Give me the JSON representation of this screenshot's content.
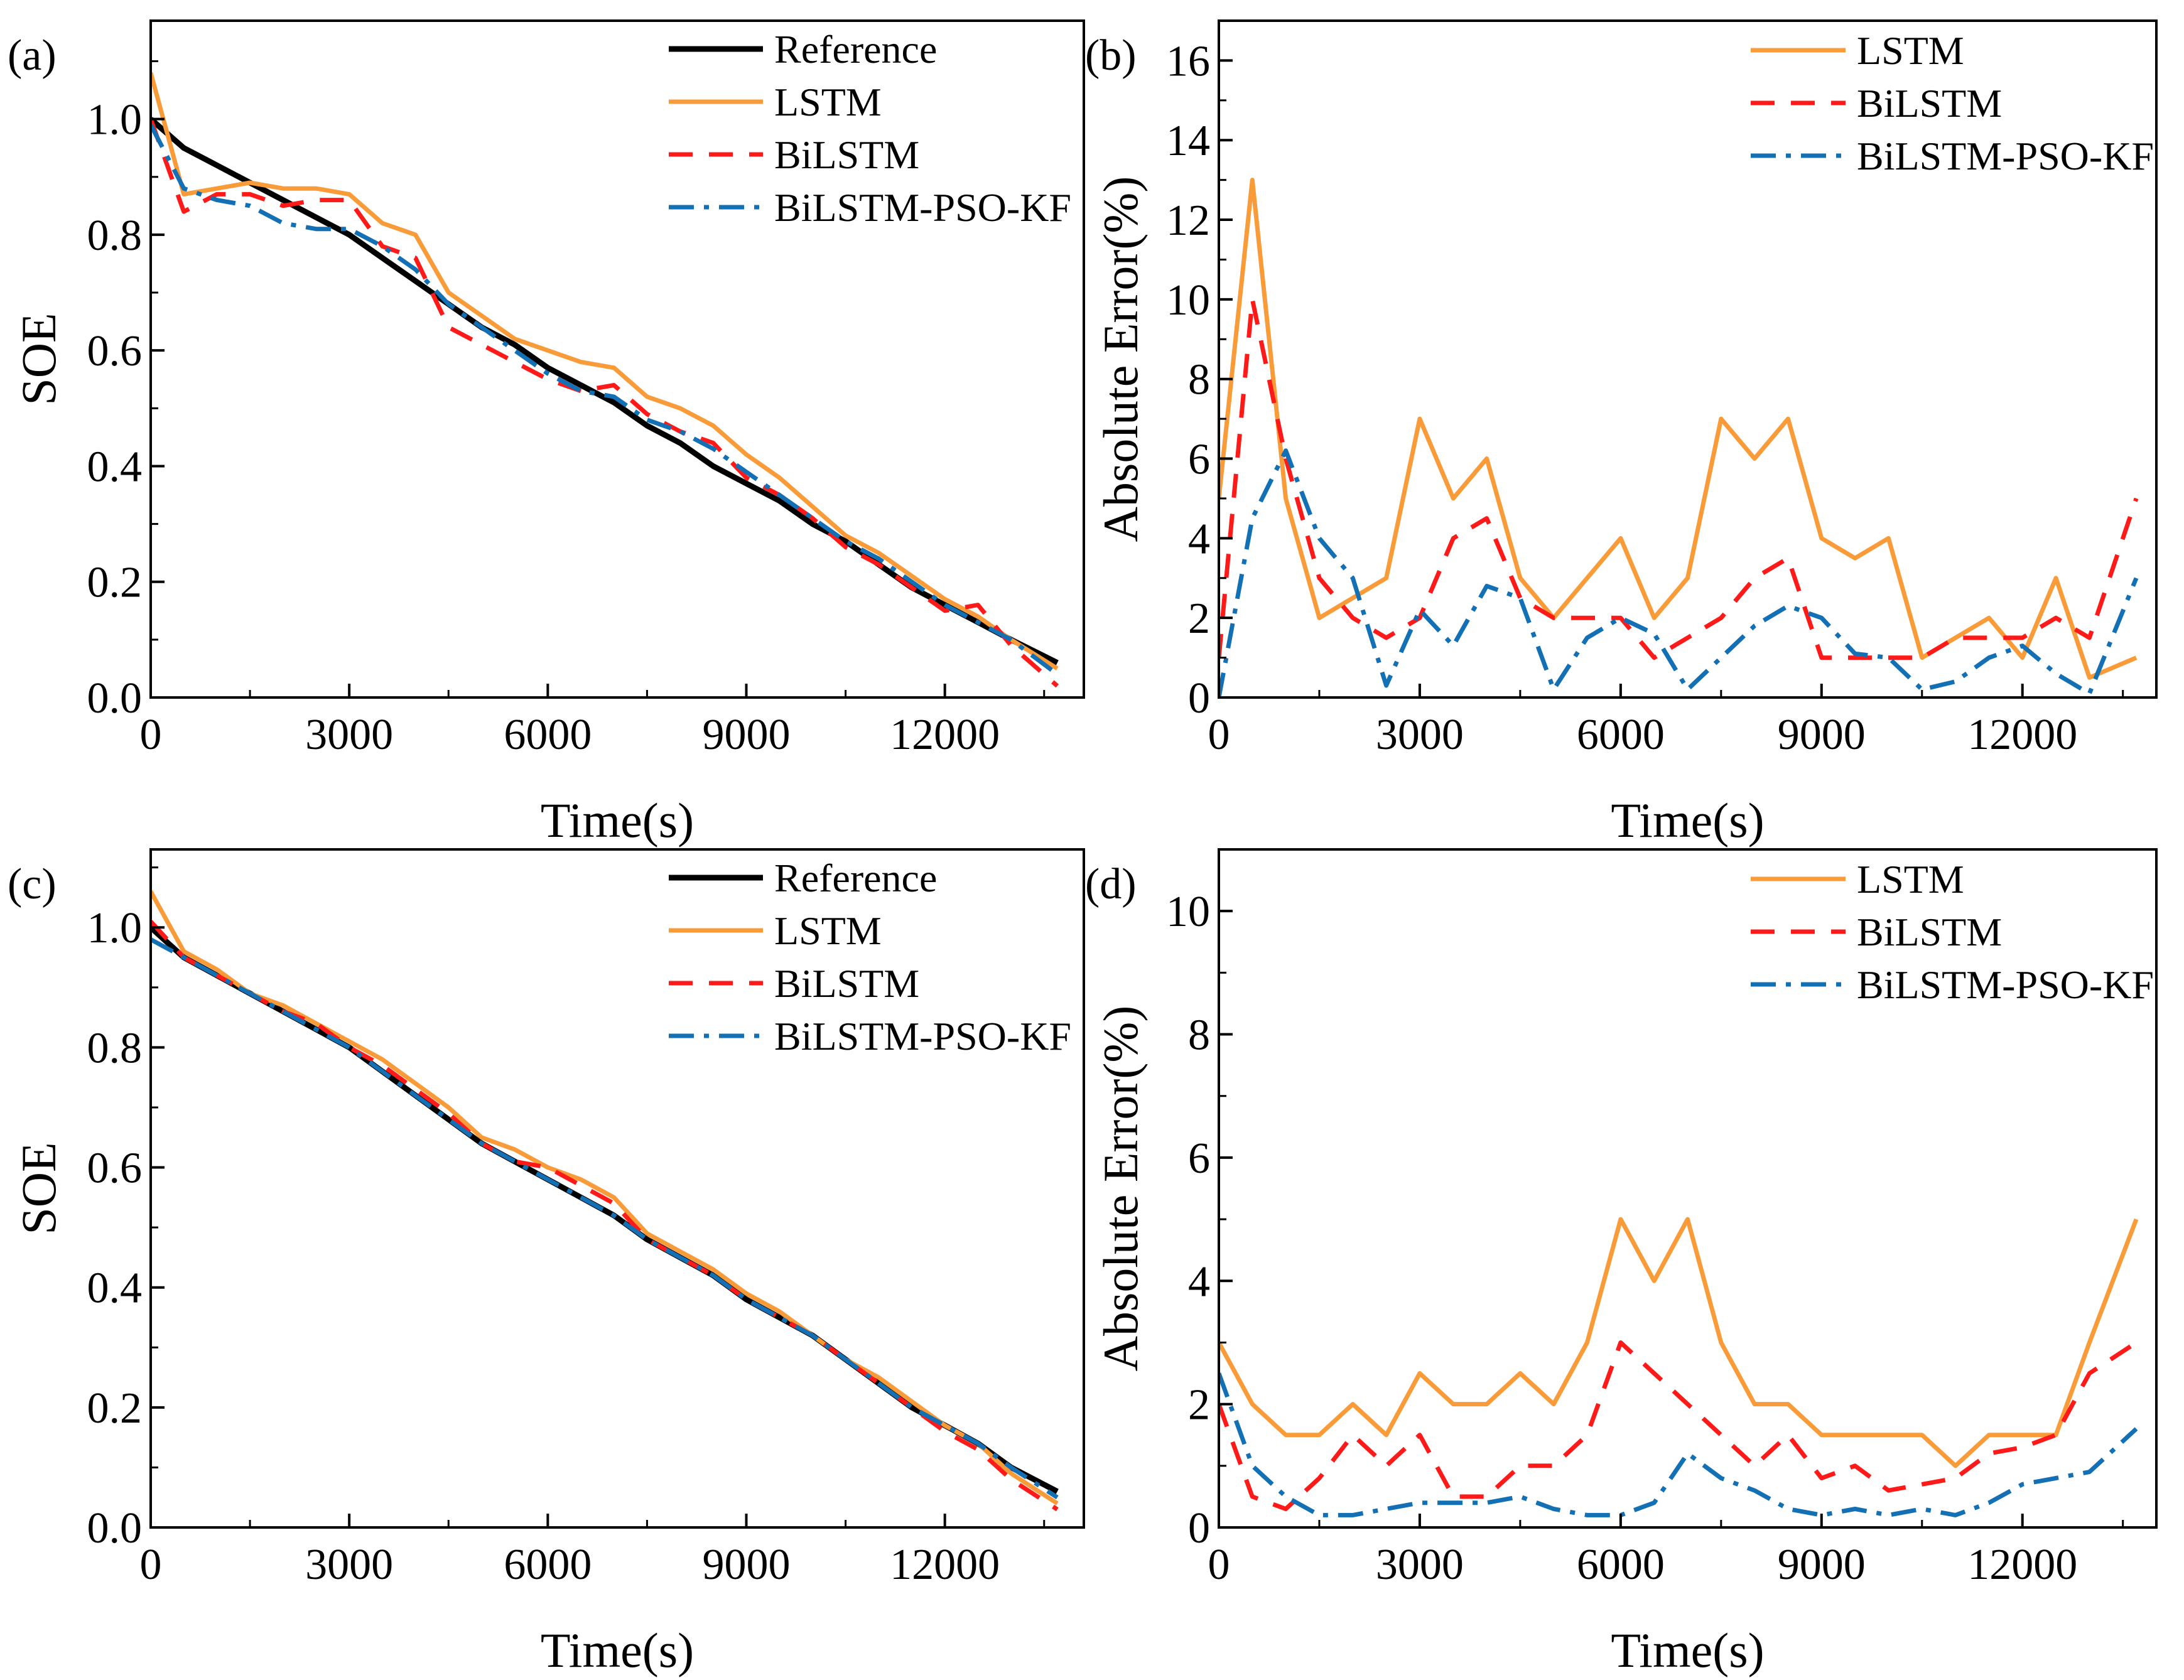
{
  "colors": {
    "Reference": "#000000",
    "LSTM": "#F99B38",
    "BiLSTM": "#FF1A1A",
    "BiLSTM-PSO-KF": "#1470B4"
  },
  "chart_data": [
    {
      "panel": "(a)",
      "type": "line",
      "xlabel": "Time(s)",
      "ylabel": "SOE",
      "xlim": [
        0,
        14100
      ],
      "ylim": [
        0,
        1.17
      ],
      "xticks": [
        0,
        3000,
        6000,
        9000,
        12000
      ],
      "xtick_labels": [
        "0",
        "3000",
        "6000",
        "9000",
        "12000"
      ],
      "yticks": [
        0,
        0.2,
        0.4,
        0.6,
        0.8,
        1.0
      ],
      "ytick_labels": [
        "0.0",
        "0.2",
        "0.4",
        "0.6",
        "0.8",
        "1.0"
      ],
      "legend": "top-right",
      "x": [
        0,
        500,
        1000,
        1500,
        2000,
        2500,
        3000,
        3500,
        4000,
        4500,
        5000,
        5500,
        6000,
        6500,
        7000,
        7500,
        8000,
        8500,
        9000,
        9500,
        10000,
        10500,
        11000,
        11500,
        12000,
        12500,
        13000,
        13700
      ],
      "series": [
        {
          "name": "Reference",
          "style": "solid",
          "values": [
            1.0,
            0.95,
            0.92,
            0.89,
            0.86,
            0.83,
            0.8,
            0.76,
            0.72,
            0.68,
            0.64,
            0.61,
            0.57,
            0.54,
            0.51,
            0.47,
            0.44,
            0.4,
            0.37,
            0.34,
            0.3,
            0.27,
            0.23,
            0.19,
            0.16,
            0.13,
            0.1,
            0.06
          ]
        },
        {
          "name": "LSTM",
          "style": "solid",
          "values": [
            1.08,
            0.87,
            0.88,
            0.89,
            0.88,
            0.88,
            0.87,
            0.82,
            0.8,
            0.7,
            0.66,
            0.62,
            0.6,
            0.58,
            0.57,
            0.52,
            0.5,
            0.47,
            0.42,
            0.38,
            0.33,
            0.28,
            0.25,
            0.21,
            0.17,
            0.14,
            0.1,
            0.05
          ]
        },
        {
          "name": "BiLSTM",
          "style": "dash",
          "values": [
            1.0,
            0.84,
            0.87,
            0.87,
            0.85,
            0.86,
            0.86,
            0.78,
            0.76,
            0.64,
            0.61,
            0.58,
            0.55,
            0.53,
            0.54,
            0.49,
            0.46,
            0.44,
            0.38,
            0.35,
            0.31,
            0.26,
            0.23,
            0.19,
            0.15,
            0.16,
            0.09,
            0.02
          ]
        },
        {
          "name": "BiLSTM-PSO-KF",
          "style": "dashdot",
          "values": [
            0.99,
            0.88,
            0.86,
            0.85,
            0.82,
            0.81,
            0.81,
            0.78,
            0.74,
            0.68,
            0.64,
            0.6,
            0.56,
            0.53,
            0.52,
            0.48,
            0.46,
            0.43,
            0.39,
            0.35,
            0.31,
            0.27,
            0.24,
            0.2,
            0.16,
            0.13,
            0.1,
            0.04
          ]
        }
      ]
    },
    {
      "panel": "(b)",
      "type": "line",
      "xlabel": "Time(s)",
      "ylabel": "Absolute Error(%)",
      "xlim": [
        0,
        14000
      ],
      "ylim": [
        0,
        17
      ],
      "xticks": [
        0,
        3000,
        6000,
        9000,
        12000
      ],
      "xtick_labels": [
        "0",
        "3000",
        "6000",
        "9000",
        "12000"
      ],
      "yticks": [
        0,
        2,
        4,
        6,
        8,
        10,
        12,
        14,
        16
      ],
      "ytick_labels": [
        "0",
        "2",
        "4",
        "6",
        "8",
        "10",
        "12",
        "14",
        "16"
      ],
      "legend": "top-right",
      "x": [
        0,
        500,
        1000,
        1500,
        2000,
        2500,
        3000,
        3500,
        4000,
        4500,
        5000,
        5500,
        6000,
        6500,
        7000,
        7500,
        8000,
        8500,
        9000,
        9500,
        10000,
        10500,
        11000,
        11500,
        12000,
        12500,
        13000,
        13700
      ],
      "series": [
        {
          "name": "LSTM",
          "style": "solid",
          "values": [
            5,
            13,
            5,
            2,
            2.5,
            3,
            7,
            5,
            6,
            3,
            2,
            3,
            4,
            2,
            3,
            7,
            6,
            7,
            4,
            3.5,
            4,
            1,
            1.5,
            2,
            1,
            3,
            0.5,
            1
          ]
        },
        {
          "name": "BiLSTM",
          "style": "dash",
          "values": [
            1,
            10,
            6,
            3,
            2,
            1.5,
            2,
            4,
            4.5,
            2.5,
            2,
            2,
            2,
            1,
            1.5,
            2,
            3,
            3.5,
            1,
            1,
            1,
            1,
            1.5,
            1.5,
            1.5,
            2,
            1.5,
            5
          ]
        },
        {
          "name": "BiLSTM-PSO-KF",
          "style": "dashdot",
          "values": [
            0,
            4.5,
            6.2,
            4,
            3,
            0.3,
            2.2,
            1.3,
            2.8,
            2.5,
            0.2,
            1.5,
            2,
            1.6,
            0.2,
            1.0,
            1.8,
            2.3,
            2,
            1.1,
            1.0,
            0.2,
            0.4,
            1.0,
            1.3,
            0.6,
            0.1,
            3
          ]
        }
      ]
    },
    {
      "panel": "(c)",
      "type": "line",
      "xlabel": "Time(s)",
      "ylabel": "SOE",
      "xlim": [
        0,
        14100
      ],
      "ylim": [
        0,
        1.13
      ],
      "xticks": [
        0,
        3000,
        6000,
        9000,
        12000
      ],
      "xtick_labels": [
        "0",
        "3000",
        "6000",
        "9000",
        "12000"
      ],
      "yticks": [
        0,
        0.2,
        0.4,
        0.6,
        0.8,
        1.0
      ],
      "ytick_labels": [
        "0.0",
        "0.2",
        "0.4",
        "0.6",
        "0.8",
        "1.0"
      ],
      "legend": "top-right",
      "x": [
        0,
        500,
        1000,
        1500,
        2000,
        2500,
        3000,
        3500,
        4000,
        4500,
        5000,
        5500,
        6000,
        6500,
        7000,
        7500,
        8000,
        8500,
        9000,
        9500,
        10000,
        10500,
        11000,
        11500,
        12000,
        12500,
        13000,
        13700
      ],
      "series": [
        {
          "name": "Reference",
          "style": "solid",
          "values": [
            1.0,
            0.95,
            0.92,
            0.89,
            0.86,
            0.83,
            0.8,
            0.76,
            0.72,
            0.68,
            0.64,
            0.61,
            0.58,
            0.55,
            0.52,
            0.48,
            0.45,
            0.42,
            0.38,
            0.35,
            0.32,
            0.28,
            0.24,
            0.2,
            0.17,
            0.14,
            0.1,
            0.06
          ]
        },
        {
          "name": "LSTM",
          "style": "solid",
          "values": [
            1.06,
            0.96,
            0.93,
            0.89,
            0.87,
            0.84,
            0.81,
            0.78,
            0.74,
            0.7,
            0.65,
            0.63,
            0.6,
            0.58,
            0.55,
            0.49,
            0.46,
            0.43,
            0.39,
            0.36,
            0.32,
            0.28,
            0.25,
            0.21,
            0.17,
            0.14,
            0.09,
            0.04
          ]
        },
        {
          "name": "BiLSTM",
          "style": "dash",
          "values": [
            1.01,
            0.95,
            0.92,
            0.89,
            0.86,
            0.84,
            0.8,
            0.77,
            0.73,
            0.69,
            0.64,
            0.61,
            0.6,
            0.57,
            0.54,
            0.48,
            0.45,
            0.42,
            0.38,
            0.35,
            0.32,
            0.28,
            0.24,
            0.2,
            0.16,
            0.13,
            0.08,
            0.03
          ]
        },
        {
          "name": "BiLSTM-PSO-KF",
          "style": "dashdot",
          "values": [
            0.98,
            0.95,
            0.92,
            0.89,
            0.86,
            0.83,
            0.8,
            0.76,
            0.72,
            0.68,
            0.64,
            0.61,
            0.58,
            0.55,
            0.52,
            0.48,
            0.45,
            0.42,
            0.38,
            0.35,
            0.32,
            0.28,
            0.24,
            0.2,
            0.17,
            0.14,
            0.1,
            0.05
          ]
        }
      ]
    },
    {
      "panel": "(d)",
      "type": "line",
      "xlabel": "Time(s)",
      "ylabel": "Absolute Error(%)",
      "xlim": [
        0,
        14000
      ],
      "ylim": [
        0,
        11
      ],
      "xticks": [
        0,
        3000,
        6000,
        9000,
        12000
      ],
      "xtick_labels": [
        "0",
        "3000",
        "6000",
        "9000",
        "12000"
      ],
      "yticks": [
        0,
        2,
        4,
        6,
        8,
        10
      ],
      "ytick_labels": [
        "0",
        "2",
        "4",
        "6",
        "8",
        "10"
      ],
      "legend": "top-right",
      "x": [
        0,
        500,
        1000,
        1500,
        2000,
        2500,
        3000,
        3500,
        4000,
        4500,
        5000,
        5500,
        6000,
        6500,
        7000,
        7500,
        8000,
        8500,
        9000,
        9500,
        10000,
        10500,
        11000,
        11500,
        12000,
        12500,
        13000,
        13700
      ],
      "series": [
        {
          "name": "LSTM",
          "style": "solid",
          "values": [
            3,
            2,
            1.5,
            1.5,
            2,
            1.5,
            2.5,
            2,
            2,
            2.5,
            2,
            3,
            5,
            4,
            5,
            3,
            2,
            2,
            1.5,
            1.5,
            1.5,
            1.5,
            1,
            1.5,
            1.5,
            1.5,
            3,
            5
          ]
        },
        {
          "name": "BiLSTM",
          "style": "dash",
          "values": [
            2,
            0.5,
            0.3,
            0.8,
            1.5,
            1,
            1.5,
            0.5,
            0.5,
            1,
            1,
            1.5,
            3,
            2.5,
            2,
            1.5,
            1,
            1.5,
            0.8,
            1,
            0.6,
            0.7,
            0.8,
            1.2,
            1.3,
            1.5,
            2.5,
            3
          ]
        },
        {
          "name": "BiLSTM-PSO-KF",
          "style": "dashdot",
          "values": [
            2.5,
            1,
            0.5,
            0.2,
            0.2,
            0.3,
            0.4,
            0.4,
            0.4,
            0.5,
            0.3,
            0.2,
            0.2,
            0.4,
            1.2,
            0.8,
            0.6,
            0.3,
            0.2,
            0.3,
            0.2,
            0.3,
            0.2,
            0.4,
            0.7,
            0.8,
            0.9,
            1.6
          ]
        }
      ]
    }
  ]
}
